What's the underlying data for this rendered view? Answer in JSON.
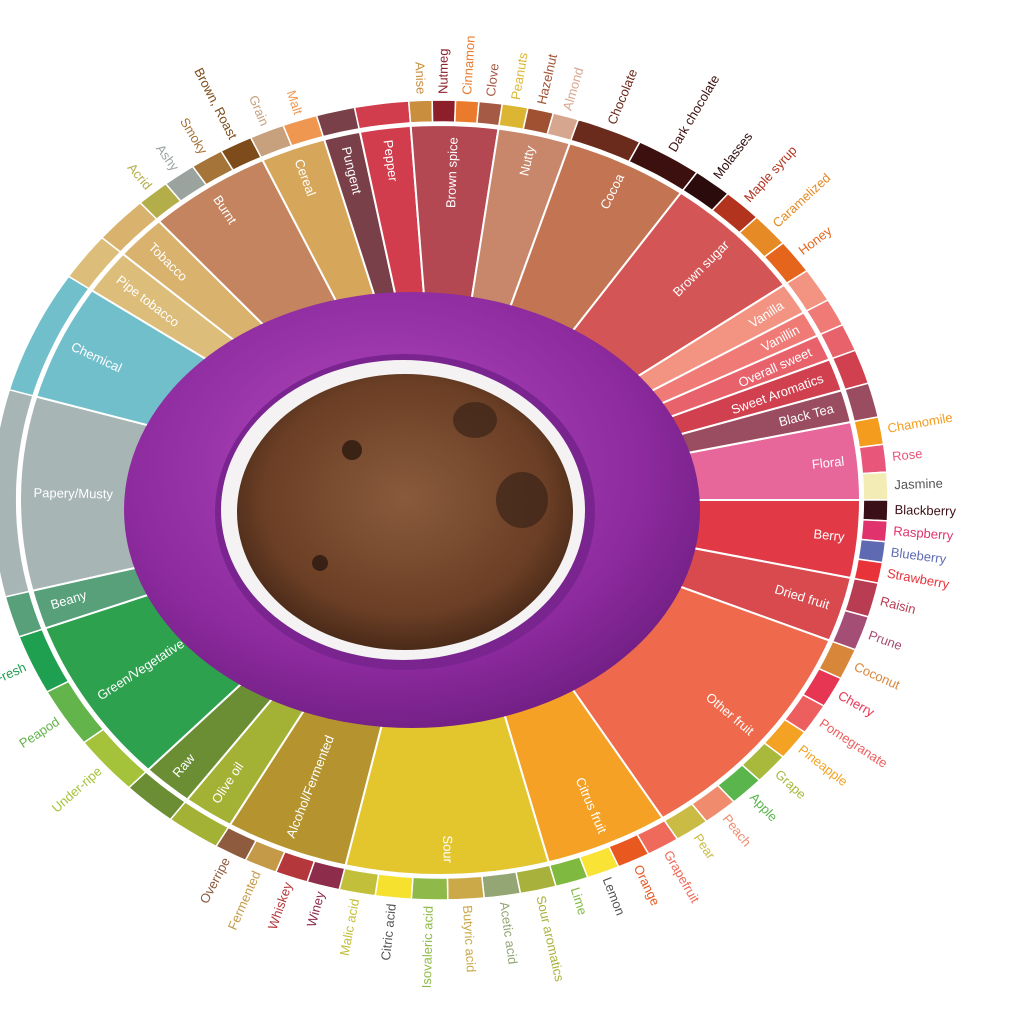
{
  "wheel": {
    "segments": [
      {
        "label": "Floral",
        "color": "#e8679a",
        "flavors": [
          {
            "label": "Chamomile",
            "color": "#f39c1e"
          },
          {
            "label": "Rose",
            "color": "#e8577a"
          },
          {
            "label": "Jasmine",
            "color": "#f4ecb5"
          }
        ]
      },
      {
        "label": "Berry",
        "color": "#e13a46",
        "flavors": [
          {
            "label": "Blackberry",
            "color": "#3b0f17"
          },
          {
            "label": "Raspberry",
            "color": "#e0336e"
          },
          {
            "label": "Blueberry",
            "color": "#5e6bb2"
          },
          {
            "label": "Strawberry",
            "color": "#e8333a"
          }
        ]
      },
      {
        "label": "Dried fruit",
        "color": "#d84a4e",
        "flavors": [
          {
            "label": "Raisin",
            "color": "#b83d52"
          },
          {
            "label": "Prune",
            "color": "#a44d75"
          }
        ]
      },
      {
        "label": "Other fruit",
        "color": "#ef6a4c",
        "flavors": [
          {
            "label": "Coconut",
            "color": "#d8873a"
          },
          {
            "label": "Cherry",
            "color": "#e63653"
          },
          {
            "label": "Pomegranate",
            "color": "#ed5e5e"
          },
          {
            "label": "Pineapple",
            "color": "#f3a224"
          },
          {
            "label": "Grape",
            "color": "#a8b93b"
          },
          {
            "label": "Apple",
            "color": "#59b54c"
          },
          {
            "label": "Peach",
            "color": "#f08b6e"
          },
          {
            "label": "Pear",
            "color": "#c9bb43"
          }
        ]
      },
      {
        "label": "Citrus fruit",
        "color": "#f4a125",
        "flavors": [
          {
            "label": "Grapefruit",
            "color": "#ef6a5a"
          },
          {
            "label": "Orange",
            "color": "#e8581f"
          },
          {
            "label": "Lemon",
            "color": "#f9e334"
          },
          {
            "label": "Lime",
            "color": "#7fb93f"
          }
        ]
      },
      {
        "label": "Sour",
        "color": "#e3c52e",
        "flavors": [
          {
            "label": "Sour aromatics",
            "color": "#a9b13d"
          },
          {
            "label": "Acetic acid",
            "color": "#93a673"
          },
          {
            "label": "Butyric acid",
            "color": "#cba948"
          },
          {
            "label": "Isovaleric acid",
            "color": "#8fba4a"
          },
          {
            "label": "Citric acid",
            "color": "#f5e12e"
          },
          {
            "label": "Malic acid",
            "color": "#c2c03a"
          }
        ]
      },
      {
        "label": "Alcohol/Fermented",
        "color": "#b5942f",
        "flavors": [
          {
            "label": "Winey",
            "color": "#8e2c4c"
          },
          {
            "label": "Whiskey",
            "color": "#b4373b"
          },
          {
            "label": "Fermented",
            "color": "#c49a49"
          },
          {
            "label": "Overripe",
            "color": "#8e5b3e"
          }
        ]
      },
      {
        "label": "Olive oil",
        "color": "#a3b134",
        "flavors": []
      },
      {
        "label": "Raw",
        "color": "#6b8e35",
        "flavors": []
      },
      {
        "label": "Green/Vegetative",
        "color": "#2ea14f",
        "flavors": [
          {
            "label": "Under-ripe",
            "color": "#a4c23a"
          },
          {
            "label": "Peapod",
            "color": "#62b44b"
          },
          {
            "label": "Fresh",
            "color": "#1f9f50"
          }
        ]
      },
      {
        "label": "Beany",
        "color": "#57a07a",
        "flavors": []
      },
      {
        "label": "Papery/Musty",
        "color": "#a8b5b5",
        "flavors": []
      },
      {
        "label": "Chemical",
        "color": "#72bfcc",
        "flavors": []
      },
      {
        "label": "Pipe tobacco",
        "color": "#dcbd79",
        "flavors": []
      },
      {
        "label": "Tobacco",
        "color": "#d9b26d",
        "flavors": []
      },
      {
        "label": "Burnt",
        "color": "#c4845f",
        "flavors": [
          {
            "label": "Acrid",
            "color": "#b4ae4a"
          },
          {
            "label": "Ashy",
            "color": "#9aa39e"
          },
          {
            "label": "Smoky",
            "color": "#a57438"
          },
          {
            "label": "Brown, Roast",
            "color": "#7e4b1a"
          }
        ]
      },
      {
        "label": "Cereal",
        "color": "#d6a65a",
        "flavors": [
          {
            "label": "Grain",
            "color": "#c7a07d"
          },
          {
            "label": "Malt",
            "color": "#ef9750"
          }
        ]
      },
      {
        "label": "Pungent",
        "color": "#7a4049",
        "flavors": []
      },
      {
        "label": "Pepper",
        "color": "#d23d4d",
        "flavors": []
      },
      {
        "label": "Brown spice",
        "color": "#b34752",
        "flavors": [
          {
            "label": "Anise",
            "color": "#c98f3e"
          },
          {
            "label": "Nutmeg",
            "color": "#8c1f2a"
          },
          {
            "label": "Cinnamon",
            "color": "#ea7b2c"
          },
          {
            "label": "Clove",
            "color": "#a55a46"
          }
        ]
      },
      {
        "label": "Nutty",
        "color": "#c8876a",
        "flavors": [
          {
            "label": "Peanuts",
            "color": "#dcb632"
          },
          {
            "label": "Hazelnut",
            "color": "#a05131"
          },
          {
            "label": "Almond",
            "color": "#d7a68f"
          }
        ]
      },
      {
        "label": "Cocoa",
        "color": "#c27453",
        "flavors": [
          {
            "label": "Chocolate",
            "color": "#6a2a1c"
          },
          {
            "label": "Dark chocolate",
            "color": "#3d1010"
          }
        ]
      },
      {
        "label": "Brown sugar",
        "color": "#d45556",
        "flavors": [
          {
            "label": "Molasses",
            "color": "#2b0b0b"
          },
          {
            "label": "Maple syrup",
            "color": "#b2341f"
          },
          {
            "label": "Caramelized",
            "color": "#e58a25"
          },
          {
            "label": "Honey",
            "color": "#e5651c"
          }
        ]
      },
      {
        "label": "Vanilla",
        "color": "#f39382",
        "flavors": []
      },
      {
        "label": "Vanillin",
        "color": "#f07a75",
        "flavors": []
      },
      {
        "label": "Overall sweet",
        "color": "#e8626b",
        "flavors": []
      },
      {
        "label": "Sweet Aromatics",
        "color": "#d1404f",
        "flavors": []
      },
      {
        "label": "Black Tea",
        "color": "#9a4c61",
        "flavors": []
      }
    ]
  }
}
